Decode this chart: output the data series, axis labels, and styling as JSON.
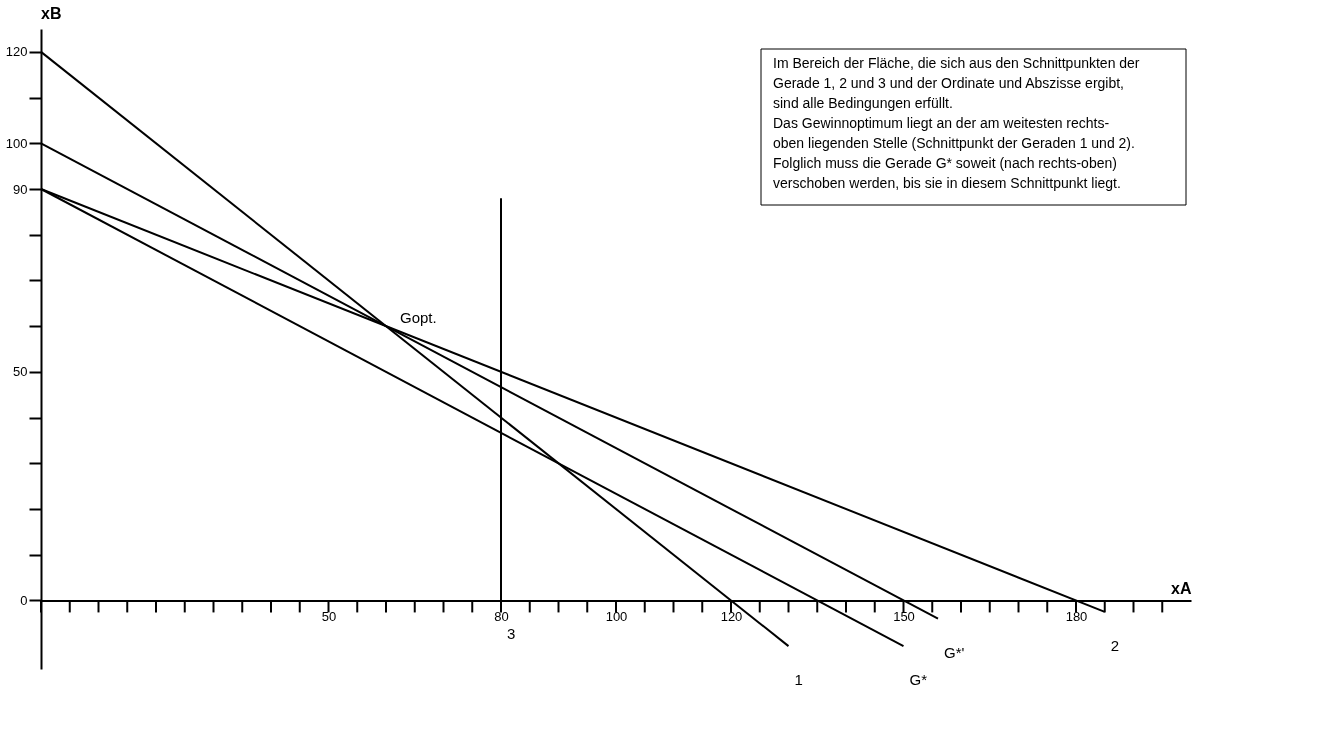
{
  "chart_data": {
    "type": "line",
    "xlabel": "xA",
    "ylabel": "xB",
    "xlim": [
      0,
      200
    ],
    "ylim": [
      -15,
      125
    ],
    "xticks": [
      {
        "value": 0,
        "label": null
      },
      {
        "value": 5,
        "label": null
      },
      {
        "value": 10,
        "label": null
      },
      {
        "value": 15,
        "label": null
      },
      {
        "value": 20,
        "label": null
      },
      {
        "value": 25,
        "label": null
      },
      {
        "value": 30,
        "label": null
      },
      {
        "value": 35,
        "label": null
      },
      {
        "value": 40,
        "label": null
      },
      {
        "value": 45,
        "label": null
      },
      50,
      {
        "value": 55,
        "label": null
      },
      {
        "value": 60,
        "label": null
      },
      {
        "value": 65,
        "label": null
      },
      {
        "value": 70,
        "label": null
      },
      {
        "value": 75,
        "label": null
      },
      80,
      {
        "value": 85,
        "label": null
      },
      {
        "value": 90,
        "label": null
      },
      {
        "value": 95,
        "label": null
      },
      100,
      {
        "value": 105,
        "label": null
      },
      {
        "value": 110,
        "label": null
      },
      {
        "value": 115,
        "label": null
      },
      120,
      {
        "value": 125,
        "label": null
      },
      {
        "value": 130,
        "label": null
      },
      {
        "value": 135,
        "label": null
      },
      {
        "value": 140,
        "label": null
      },
      {
        "value": 145,
        "label": null
      },
      150,
      {
        "value": 155,
        "label": null
      },
      {
        "value": 160,
        "label": null
      },
      {
        "value": 165,
        "label": null
      },
      {
        "value": 170,
        "label": null
      },
      {
        "value": 175,
        "label": null
      },
      180,
      {
        "value": 185,
        "label": null
      },
      {
        "value": 190,
        "label": null
      },
      {
        "value": 195,
        "label": null
      }
    ],
    "yticks": [
      {
        "value": 0,
        "label": "0"
      },
      {
        "value": 10,
        "label": null
      },
      {
        "value": 20,
        "label": null
      },
      {
        "value": 30,
        "label": null
      },
      {
        "value": 40,
        "label": null
      },
      50,
      {
        "value": 60,
        "label": null
      },
      {
        "value": 70,
        "label": null
      },
      {
        "value": 80,
        "label": null
      },
      90,
      100,
      {
        "value": 110,
        "label": null
      },
      120
    ],
    "series": [
      {
        "name": "1",
        "color": "#000000",
        "x": [
          0,
          130
        ],
        "values": [
          120,
          -10
        ]
      },
      {
        "name": "2",
        "color": "#000000",
        "x": [
          0,
          185
        ],
        "values": [
          90,
          -2.5
        ]
      },
      {
        "name": "3",
        "color": "#000000",
        "x": [
          80,
          80
        ],
        "values": [
          0,
          88
        ]
      },
      {
        "name": "G*",
        "color": "#000000",
        "x": [
          0,
          150
        ],
        "values": [
          90,
          -10
        ]
      },
      {
        "name": "G*'",
        "color": "#000000",
        "x": [
          0,
          156
        ],
        "values": [
          100,
          -4
        ]
      }
    ],
    "annotations": [
      {
        "text": "Gopt.",
        "x": 60,
        "y": 60
      },
      "Im Bereich der Fläche, die sich aus den Schnittpunkten der\nGerade 1, 2 und 3 und der Ordinate und Abszisse ergibt,\nsind alle Bedingungen erfüllt.\nDas Gewinnoptimum liegt an der am weitesten rechts-\noben liegenden Stelle (Schnittpunkt der Geraden 1 und 2).\nFolglich muss die Gerade G* soweit (nach rechts-oben)\nverschoben werden, bis sie in diesem Schnittpunkt liegt."
    ],
    "legend": false,
    "grid": false,
    "marker": "none",
    "line_style": "solid"
  }
}
